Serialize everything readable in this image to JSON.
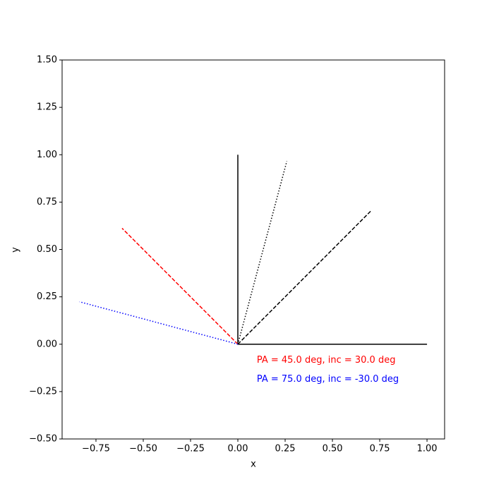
{
  "chart_data": {
    "type": "line",
    "xlabel": "x",
    "ylabel": "y",
    "xlim": [
      -0.929,
      1.093
    ],
    "ylim": [
      -0.5,
      1.5
    ],
    "xticks": [
      {
        "value": -0.75,
        "label": "−0.75"
      },
      {
        "value": -0.5,
        "label": "−0.50"
      },
      {
        "value": -0.25,
        "label": "−0.25"
      },
      {
        "value": 0,
        "label": "0.00"
      },
      {
        "value": 0.25,
        "label": "0.25"
      },
      {
        "value": 0.5,
        "label": "0.50"
      },
      {
        "value": 0.75,
        "label": "0.75"
      },
      {
        "value": 1,
        "label": "1.00"
      }
    ],
    "yticks": [
      {
        "value": -0.5,
        "label": "−0.50"
      },
      {
        "value": -0.25,
        "label": "−0.25"
      },
      {
        "value": 0,
        "label": "0.00"
      },
      {
        "value": 0.25,
        "label": "0.25"
      },
      {
        "value": 0.5,
        "label": "0.50"
      },
      {
        "value": 0.75,
        "label": "0.75"
      },
      {
        "value": 1,
        "label": "1.00"
      },
      {
        "value": 1.25,
        "label": "1.25"
      },
      {
        "value": 1.5,
        "label": "1.50"
      }
    ],
    "grid": false,
    "series": [
      {
        "color": "#000000",
        "linestyle": "solid",
        "x": [
          1,
          0,
          0
        ],
        "values": [
          0,
          0,
          1
        ]
      },
      {
        "color": "#000000",
        "linestyle": "dotted",
        "x": [
          0,
          0.259
        ],
        "values": [
          0,
          0.966
        ]
      },
      {
        "color": "#000000",
        "linestyle": "dashed",
        "x": [
          0,
          0.707
        ],
        "values": [
          0,
          0.707
        ]
      },
      {
        "color": "#ff0000",
        "linestyle": "dashed",
        "x": [
          0,
          -0.612
        ],
        "values": [
          0,
          0.612
        ]
      },
      {
        "color": "#0000ff",
        "linestyle": "dotted",
        "x": [
          0,
          -0.837
        ],
        "values": [
          0,
          0.224
        ]
      }
    ],
    "annotations": [
      {
        "text": "PA = 45.0 deg, inc = 30.0 deg",
        "x": 0.1,
        "y": -0.085,
        "color": "#ff0000"
      },
      {
        "text": "PA = 75.0 deg, inc = -30.0 deg",
        "x": 0.1,
        "y": -0.185,
        "color": "#0000ff"
      }
    ]
  }
}
